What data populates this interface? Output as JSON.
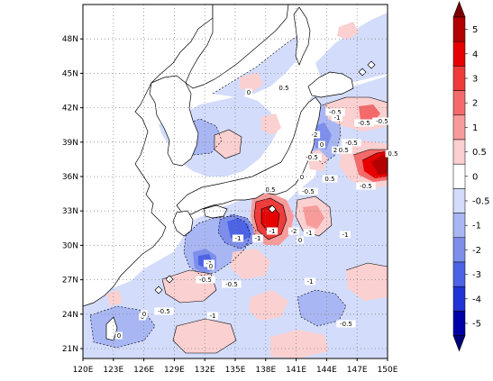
{
  "map": {
    "lon_labels": [
      "120E",
      "123E",
      "126E",
      "129E",
      "132E",
      "135E",
      "138E",
      "141E",
      "144E",
      "147E",
      "150E"
    ],
    "lat_labels": [
      "21N",
      "24N",
      "27N",
      "30N",
      "33N",
      "36N",
      "39N",
      "42N",
      "45N",
      "48N"
    ],
    "contour_labels": [
      "0",
      "0.5",
      "-0.5",
      "-1",
      "-2",
      "0",
      "-0.5",
      "0.5",
      "-1",
      "-1",
      "-0.5",
      "0",
      "-0.5",
      "0.5",
      "-1",
      "0",
      "-2",
      "2",
      "-1",
      "-0.5",
      "-1",
      "-0.5",
      "0.5",
      "-0.5",
      "-0.5",
      "-1",
      "-0.5",
      "0",
      "-0.5",
      "-1",
      "0",
      "0",
      "-0.5",
      "-1",
      "-0.5",
      "0"
    ]
  },
  "colorbar": {
    "labels": [
      "5",
      "4",
      "3",
      "2",
      "1",
      "0.5",
      "0",
      "-0.5",
      "-1",
      "-2",
      "-3",
      "-4",
      "-5"
    ],
    "colors": [
      "#b30000",
      "#e60000",
      "#f03b3b",
      "#f46a6a",
      "#f79b9b",
      "#fbd0d0",
      "#ffffff",
      "#d3dcfa",
      "#a8b6f3",
      "#7d8eeb",
      "#4c63e5",
      "#1f33d6",
      "#0000a8"
    ],
    "tip_top_color": "#7a0000",
    "tip_bottom_color": "#00007a"
  },
  "colors": {
    "land_fill": "#ffffff",
    "coast_stroke": "#000000",
    "frame_stroke": "#000000",
    "grid_stroke": "#888888"
  }
}
